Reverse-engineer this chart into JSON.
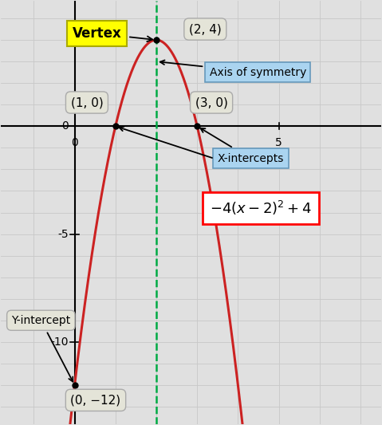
{
  "xlim": [
    -1.8,
    7.5
  ],
  "ylim": [
    -13.8,
    5.8
  ],
  "curve_color": "#cc2222",
  "dashed_color": "#00aa44",
  "grid_color": "#c8c8c8",
  "bg_color": "#e0e0e0",
  "axis_sym_x": 2,
  "xtick_labels": [
    [
      0,
      "0"
    ],
    [
      5,
      "5"
    ]
  ],
  "ytick_labels": [
    [
      -10,
      "-10"
    ],
    [
      -5,
      "-5"
    ],
    [
      0,
      "0"
    ]
  ],
  "points": [
    [
      2,
      4
    ],
    [
      1,
      0
    ],
    [
      3,
      0
    ],
    [
      0,
      -12
    ]
  ],
  "vertex_box_text": "Vertex",
  "vertex_label": "(2, 4)",
  "axis_sym_text": "Axis of symmetry",
  "xint1_label": "(1, 0)",
  "xint2_label": "(3, 0)",
  "xintercepts_text": "X-intercepts",
  "formula_text": "$-4(x-2)^{2}+4$",
  "yintercept_text": "Y-intercept",
  "yint_label": "(0, −12)"
}
